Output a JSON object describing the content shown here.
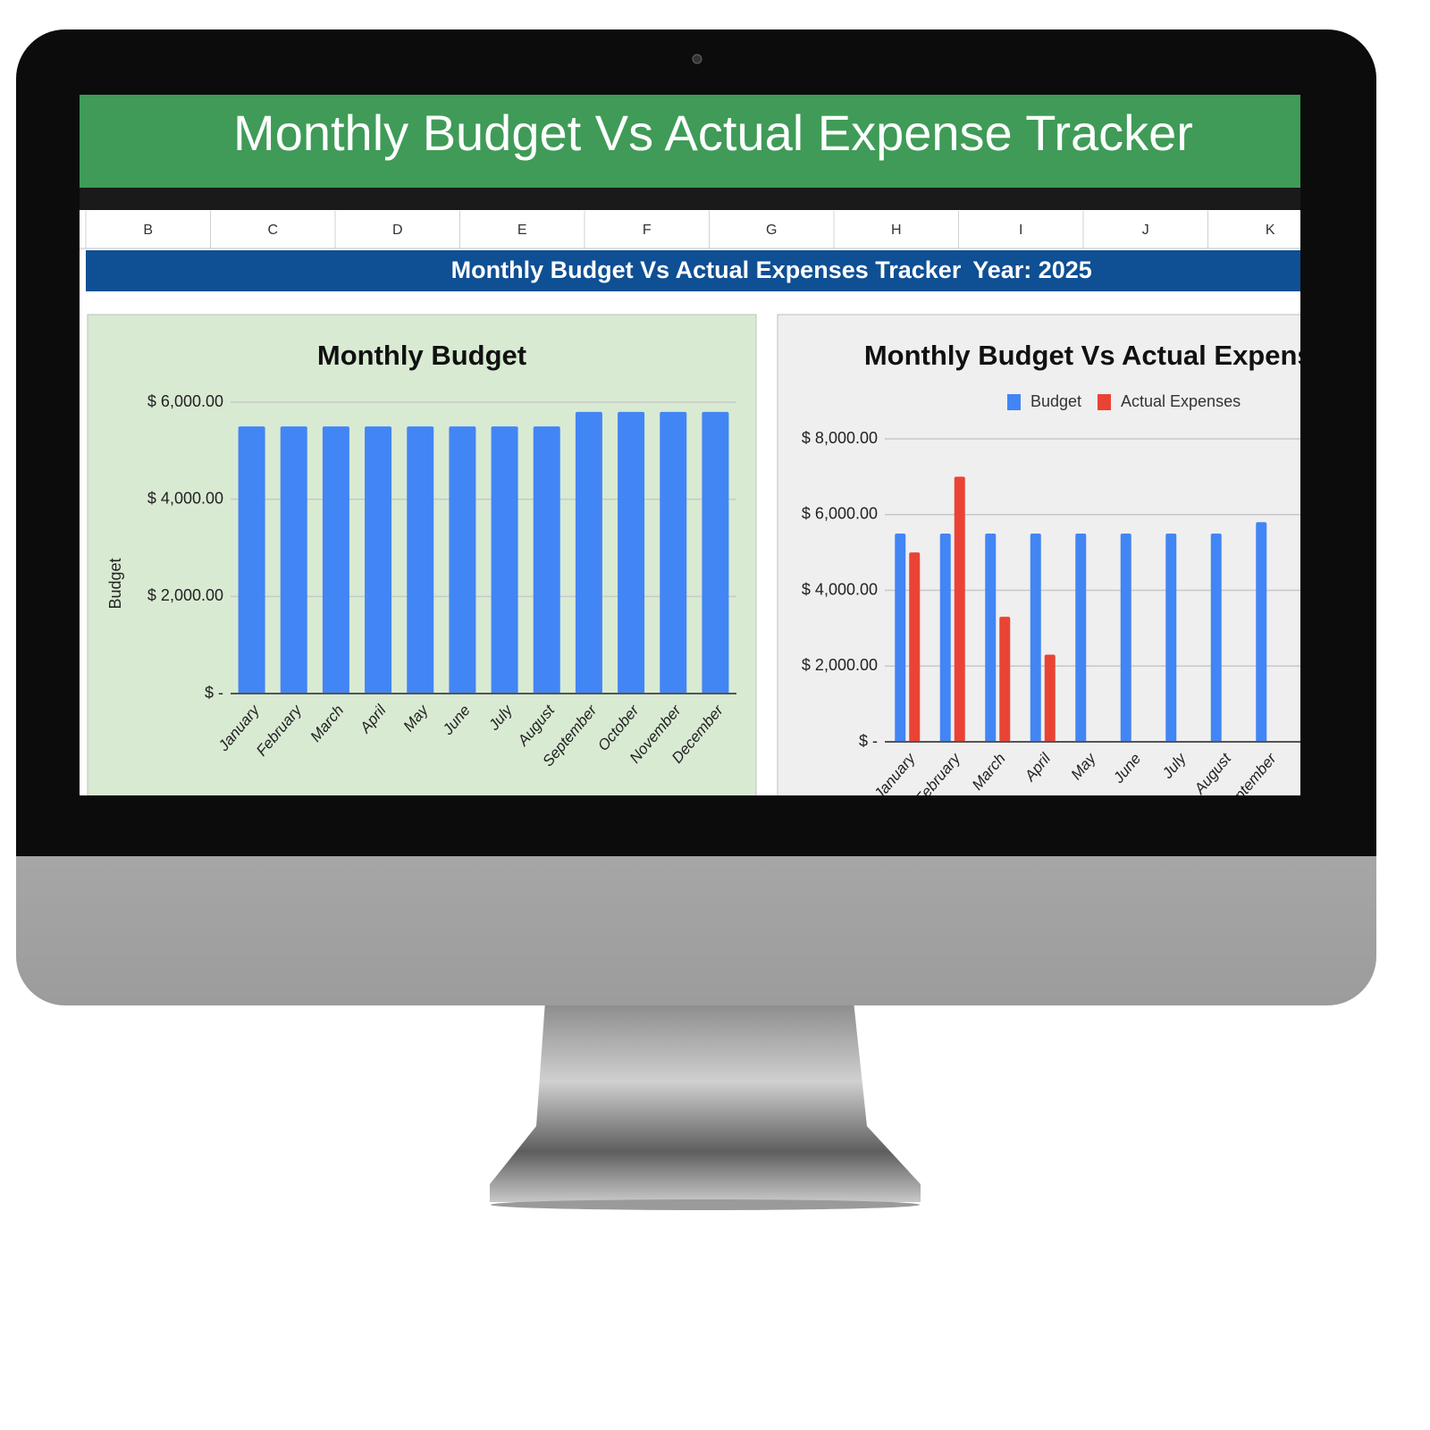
{
  "header": {
    "title": "Monthly Budget Vs Actual Expense Tracker"
  },
  "columns": [
    "B",
    "C",
    "D",
    "E",
    "F",
    "G",
    "H",
    "I",
    "J",
    "K"
  ],
  "banner": {
    "title": "Monthly Budget Vs Actual Expenses Tracker",
    "year": "Year: 2025"
  },
  "chart_data": [
    {
      "type": "bar",
      "title": "Monthly Budget",
      "y_label": "Budget",
      "categories": [
        "January",
        "February",
        "March",
        "April",
        "May",
        "June",
        "July",
        "August",
        "September",
        "October",
        "November",
        "December"
      ],
      "values": [
        5500,
        5500,
        5500,
        5500,
        5500,
        5500,
        5500,
        5500,
        5800,
        5800,
        5800,
        5800
      ],
      "color": "#4285f4",
      "ylim": [
        0,
        6000
      ],
      "yticks": [
        {
          "value": 0,
          "label": "$ -"
        },
        {
          "value": 2000,
          "label": "$ 2,000.00"
        },
        {
          "value": 4000,
          "label": "$ 4,000.00"
        },
        {
          "value": 6000,
          "label": "$ 6,000.00"
        }
      ],
      "grid": true
    },
    {
      "type": "bar",
      "title": "Monthly Budget Vs Actual Expenses",
      "categories": [
        "January",
        "February",
        "March",
        "April",
        "May",
        "June",
        "July",
        "August",
        "September"
      ],
      "series": [
        {
          "name": "Budget",
          "color": "#4285f4",
          "values": [
            5500,
            5500,
            5500,
            5500,
            5500,
            5500,
            5500,
            5500,
            5800
          ]
        },
        {
          "name": "Actual Expenses",
          "color": "#ea4335",
          "values": [
            5000,
            7000,
            3300,
            2300,
            null,
            null,
            null,
            null,
            null
          ]
        }
      ],
      "ylim": [
        0,
        8000
      ],
      "yticks": [
        {
          "value": 0,
          "label": "$ -"
        },
        {
          "value": 2000,
          "label": "$ 2,000.00"
        },
        {
          "value": 4000,
          "label": "$ 4,000.00"
        },
        {
          "value": 6000,
          "label": "$ 6,000.00"
        },
        {
          "value": 8000,
          "label": "$ 8,000.00"
        }
      ],
      "grid": true,
      "legend": "top"
    }
  ]
}
